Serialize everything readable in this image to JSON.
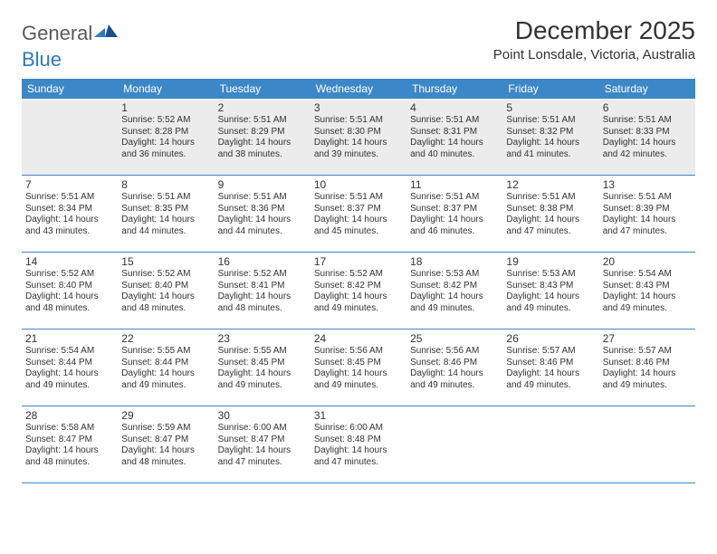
{
  "brand": {
    "general": "General",
    "blue": "Blue"
  },
  "title": "December 2025",
  "location": "Point Lonsdale, Victoria, Australia",
  "colors": {
    "header_bg": "#3c87c7",
    "header_text": "#ffffff",
    "row0_bg": "#ececec",
    "border": "#3c87c7",
    "text": "#333333",
    "logo_gray": "#58595b",
    "logo_blue": "#2f79bd"
  },
  "day_headers": [
    "Sunday",
    "Monday",
    "Tuesday",
    "Wednesday",
    "Thursday",
    "Friday",
    "Saturday"
  ],
  "weeks": [
    [
      null,
      {
        "n": "1",
        "sr": "5:52 AM",
        "ss": "8:28 PM",
        "dl": "14 hours and 36 minutes."
      },
      {
        "n": "2",
        "sr": "5:51 AM",
        "ss": "8:29 PM",
        "dl": "14 hours and 38 minutes."
      },
      {
        "n": "3",
        "sr": "5:51 AM",
        "ss": "8:30 PM",
        "dl": "14 hours and 39 minutes."
      },
      {
        "n": "4",
        "sr": "5:51 AM",
        "ss": "8:31 PM",
        "dl": "14 hours and 40 minutes."
      },
      {
        "n": "5",
        "sr": "5:51 AM",
        "ss": "8:32 PM",
        "dl": "14 hours and 41 minutes."
      },
      {
        "n": "6",
        "sr": "5:51 AM",
        "ss": "8:33 PM",
        "dl": "14 hours and 42 minutes."
      }
    ],
    [
      {
        "n": "7",
        "sr": "5:51 AM",
        "ss": "8:34 PM",
        "dl": "14 hours and 43 minutes."
      },
      {
        "n": "8",
        "sr": "5:51 AM",
        "ss": "8:35 PM",
        "dl": "14 hours and 44 minutes."
      },
      {
        "n": "9",
        "sr": "5:51 AM",
        "ss": "8:36 PM",
        "dl": "14 hours and 44 minutes."
      },
      {
        "n": "10",
        "sr": "5:51 AM",
        "ss": "8:37 PM",
        "dl": "14 hours and 45 minutes."
      },
      {
        "n": "11",
        "sr": "5:51 AM",
        "ss": "8:37 PM",
        "dl": "14 hours and 46 minutes."
      },
      {
        "n": "12",
        "sr": "5:51 AM",
        "ss": "8:38 PM",
        "dl": "14 hours and 47 minutes."
      },
      {
        "n": "13",
        "sr": "5:51 AM",
        "ss": "8:39 PM",
        "dl": "14 hours and 47 minutes."
      }
    ],
    [
      {
        "n": "14",
        "sr": "5:52 AM",
        "ss": "8:40 PM",
        "dl": "14 hours and 48 minutes."
      },
      {
        "n": "15",
        "sr": "5:52 AM",
        "ss": "8:40 PM",
        "dl": "14 hours and 48 minutes."
      },
      {
        "n": "16",
        "sr": "5:52 AM",
        "ss": "8:41 PM",
        "dl": "14 hours and 48 minutes."
      },
      {
        "n": "17",
        "sr": "5:52 AM",
        "ss": "8:42 PM",
        "dl": "14 hours and 49 minutes."
      },
      {
        "n": "18",
        "sr": "5:53 AM",
        "ss": "8:42 PM",
        "dl": "14 hours and 49 minutes."
      },
      {
        "n": "19",
        "sr": "5:53 AM",
        "ss": "8:43 PM",
        "dl": "14 hours and 49 minutes."
      },
      {
        "n": "20",
        "sr": "5:54 AM",
        "ss": "8:43 PM",
        "dl": "14 hours and 49 minutes."
      }
    ],
    [
      {
        "n": "21",
        "sr": "5:54 AM",
        "ss": "8:44 PM",
        "dl": "14 hours and 49 minutes."
      },
      {
        "n": "22",
        "sr": "5:55 AM",
        "ss": "8:44 PM",
        "dl": "14 hours and 49 minutes."
      },
      {
        "n": "23",
        "sr": "5:55 AM",
        "ss": "8:45 PM",
        "dl": "14 hours and 49 minutes."
      },
      {
        "n": "24",
        "sr": "5:56 AM",
        "ss": "8:45 PM",
        "dl": "14 hours and 49 minutes."
      },
      {
        "n": "25",
        "sr": "5:56 AM",
        "ss": "8:46 PM",
        "dl": "14 hours and 49 minutes."
      },
      {
        "n": "26",
        "sr": "5:57 AM",
        "ss": "8:46 PM",
        "dl": "14 hours and 49 minutes."
      },
      {
        "n": "27",
        "sr": "5:57 AM",
        "ss": "8:46 PM",
        "dl": "14 hours and 49 minutes."
      }
    ],
    [
      {
        "n": "28",
        "sr": "5:58 AM",
        "ss": "8:47 PM",
        "dl": "14 hours and 48 minutes."
      },
      {
        "n": "29",
        "sr": "5:59 AM",
        "ss": "8:47 PM",
        "dl": "14 hours and 48 minutes."
      },
      {
        "n": "30",
        "sr": "6:00 AM",
        "ss": "8:47 PM",
        "dl": "14 hours and 47 minutes."
      },
      {
        "n": "31",
        "sr": "6:00 AM",
        "ss": "8:48 PM",
        "dl": "14 hours and 47 minutes."
      },
      null,
      null,
      null
    ]
  ],
  "labels": {
    "sunrise": "Sunrise:",
    "sunset": "Sunset:",
    "daylight": "Daylight:"
  }
}
